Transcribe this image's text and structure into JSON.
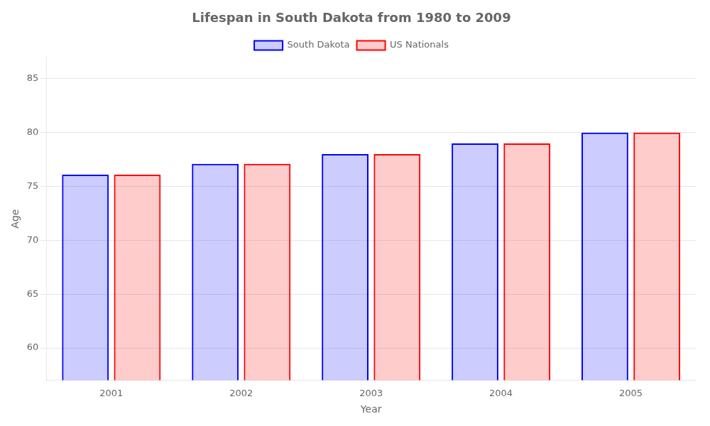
{
  "chart_data": {
    "type": "bar",
    "title": "Lifespan in South Dakota from 1980 to 2009",
    "categories": [
      "2001",
      "2002",
      "2003",
      "2004",
      "2005"
    ],
    "series": [
      {
        "name": "South Dakota",
        "color": "#0000ff",
        "values": [
          76.1,
          77.1,
          78.0,
          79.0,
          80.0
        ]
      },
      {
        "name": "US Nationals",
        "color": "#ff0000",
        "values": [
          76.1,
          77.1,
          78.0,
          79.0,
          80.0
        ]
      }
    ],
    "x_label": "Year",
    "y_label": "Age",
    "ylim": [
      57,
      87
    ],
    "yticks": [
      60,
      65,
      70,
      75,
      80,
      85
    ],
    "grid": true,
    "legend": "top"
  }
}
